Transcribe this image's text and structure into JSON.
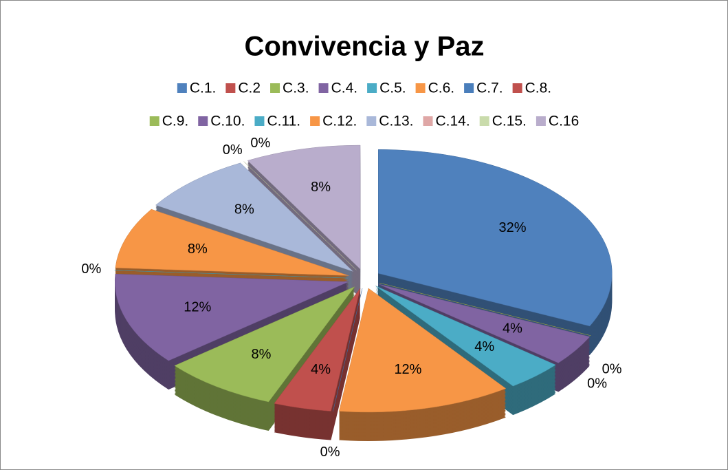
{
  "chart_data": {
    "type": "pie",
    "title": "Convivencia y Paz",
    "categories": [
      "C.1.",
      "C.2",
      "C.3.",
      "C.4.",
      "C.5.",
      "C.6.",
      "C.7.",
      "C.8.",
      "C.9.",
      "C.10.",
      "C.11.",
      "C.12.",
      "C.13.",
      "C.14.",
      "C.15.",
      "C.16"
    ],
    "values": [
      32,
      0,
      0,
      4,
      4,
      12,
      0,
      4,
      8,
      12,
      0,
      8,
      8,
      0,
      0,
      8
    ],
    "value_labels": [
      "32%",
      "0%",
      "0%",
      "4%",
      "4%",
      "12%",
      "0%",
      "4%",
      "8%",
      "12%",
      "0%",
      "8%",
      "8%",
      "0%",
      "0%",
      "8%"
    ],
    "colors": [
      "#4f81bd",
      "#c0504d",
      "#9bbb59",
      "#8064a2",
      "#4bacc6",
      "#f79646",
      "#4a7ebb",
      "#c0504d",
      "#9bbb59",
      "#8064a2",
      "#4bacc6",
      "#f79646",
      "#a9b8d9",
      "#dfa7a6",
      "#c9dbab",
      "#b9adcc"
    ],
    "legend": "top"
  }
}
